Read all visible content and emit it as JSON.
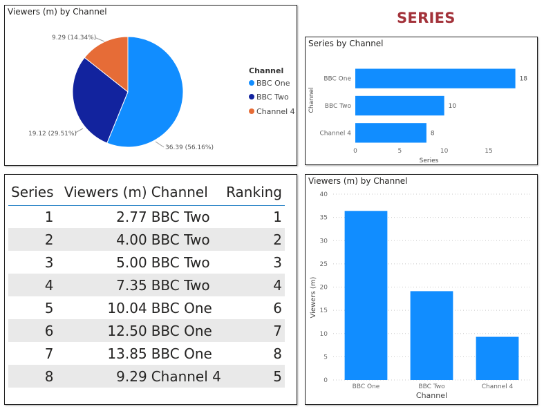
{
  "page_heading": "SERIES",
  "colors": {
    "bbc_one": "#118dff",
    "bbc_two": "#12239e",
    "channel_4": "#e66c37",
    "bar": "#118dff"
  },
  "chart_data": [
    {
      "type": "pie",
      "title": "Viewers (m) by Channel",
      "legend_title": "Channel",
      "legend_position": "right",
      "slices": [
        {
          "label": "BBC One",
          "value": 36.39,
          "display": "36.39 (56.16%)"
        },
        {
          "label": "BBC Two",
          "value": 19.12,
          "display": "19.12 (29.51%)"
        },
        {
          "label": "Channel 4",
          "value": 9.29,
          "display": "9.29 (14.34%)"
        }
      ]
    },
    {
      "type": "bar",
      "orientation": "horizontal",
      "title": "Series by Channel",
      "categories": [
        "BBC One",
        "BBC Two",
        "Channel 4"
      ],
      "values": [
        18,
        10,
        8
      ],
      "xlabel": "Series",
      "ylabel": "Channel",
      "xticks": [
        0,
        5,
        10,
        15
      ],
      "xlim": [
        0,
        18.5
      ]
    },
    {
      "type": "table",
      "columns": [
        "Series",
        "Viewers (m)",
        "Channel",
        "Ranking"
      ],
      "rows": [
        [
          "1",
          "2.77",
          "BBC Two",
          "1"
        ],
        [
          "2",
          "4.00",
          "BBC Two",
          "2"
        ],
        [
          "3",
          "5.00",
          "BBC Two",
          "3"
        ],
        [
          "4",
          "7.35",
          "BBC Two",
          "4"
        ],
        [
          "5",
          "10.04",
          "BBC One",
          "6"
        ],
        [
          "6",
          "12.50",
          "BBC One",
          "7"
        ],
        [
          "7",
          "13.85",
          "BBC One",
          "8"
        ],
        [
          "8",
          "9.29",
          "Channel 4",
          "5"
        ]
      ]
    },
    {
      "type": "bar",
      "orientation": "vertical",
      "title": "Viewers (m) by Channel",
      "categories": [
        "BBC One",
        "BBC Two",
        "Channel 4"
      ],
      "values": [
        36.39,
        19.12,
        9.29
      ],
      "xlabel": "Channel",
      "ylabel": "Viewers (m)",
      "yticks": [
        0,
        5,
        10,
        15,
        20,
        25,
        30,
        35,
        40
      ],
      "ylim": [
        0,
        40
      ],
      "grid": true
    }
  ]
}
